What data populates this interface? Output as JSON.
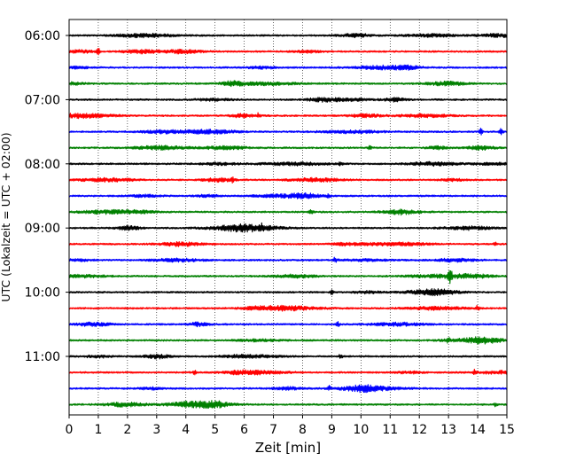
{
  "chart_data": {
    "type": "line",
    "xlabel": "Zeit  [min]",
    "ylabel": "UTC (Lokalzeit = UTC + 02:00)",
    "xlim": [
      0,
      15
    ],
    "x_ticks": [
      "0",
      "1",
      "2",
      "3",
      "4",
      "5",
      "6",
      "7",
      "8",
      "9",
      "10",
      "11",
      "12",
      "13",
      "14",
      "15"
    ],
    "y_tick_labels": [
      "06:00",
      "07:00",
      "08:00",
      "09:00",
      "10:00",
      "11:00"
    ],
    "trace_start_times": [
      "06:00",
      "06:15",
      "06:30",
      "06:45",
      "07:00",
      "07:15",
      "07:30",
      "07:45",
      "08:00",
      "08:15",
      "08:30",
      "08:45",
      "09:00",
      "09:15",
      "09:30",
      "09:45",
      "10:00",
      "10:15",
      "10:30",
      "10:45",
      "11:00",
      "11:15",
      "11:30",
      "11:45"
    ],
    "trace_interval_min": 15,
    "grid": "vertical-dotted",
    "colors": [
      "#000000",
      "#ff0000",
      "#0000ff",
      "#008000"
    ],
    "events": [
      {
        "trace": 1,
        "t": 1.0,
        "amp": 0.6
      },
      {
        "trace": 5,
        "t": 6.5,
        "amp": 0.45
      },
      {
        "trace": 6,
        "t": 14.1,
        "amp": 0.7
      },
      {
        "trace": 6,
        "t": 14.8,
        "amp": 0.7
      },
      {
        "trace": 7,
        "t": 10.3,
        "amp": 0.55
      },
      {
        "trace": 9,
        "t": 5.6,
        "amp": 0.55
      },
      {
        "trace": 8,
        "t": 9.3,
        "amp": 0.35
      },
      {
        "trace": 10,
        "t": 8.9,
        "amp": 0.4
      },
      {
        "trace": 11,
        "t": 8.3,
        "amp": 0.5
      },
      {
        "trace": 12,
        "t": 6.6,
        "amp": 0.5
      },
      {
        "trace": 13,
        "t": 14.6,
        "amp": 0.5
      },
      {
        "trace": 14,
        "t": 9.1,
        "amp": 0.5
      },
      {
        "trace": 15,
        "t": 13.05,
        "amp": 1.6
      },
      {
        "trace": 16,
        "t": 9.0,
        "amp": 0.4
      },
      {
        "trace": 17,
        "t": 14.0,
        "amp": 0.5
      },
      {
        "trace": 18,
        "t": 9.2,
        "amp": 0.45
      },
      {
        "trace": 19,
        "t": 13.0,
        "amp": 0.45
      },
      {
        "trace": 20,
        "t": 9.3,
        "amp": 0.4
      },
      {
        "trace": 21,
        "t": 4.3,
        "amp": 0.55
      },
      {
        "trace": 21,
        "t": 13.9,
        "amp": 0.5
      },
      {
        "trace": 22,
        "t": 8.9,
        "amp": 0.45
      },
      {
        "trace": 23,
        "t": 14.6,
        "amp": 0.5
      }
    ]
  }
}
